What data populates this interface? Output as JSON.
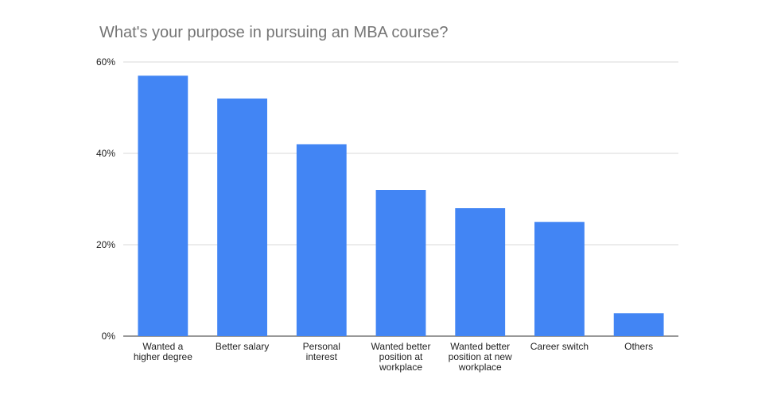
{
  "chart_data": {
    "type": "bar",
    "title": "What's your purpose in pursuing an MBA course?",
    "xlabel": "",
    "ylabel": "",
    "ylim": [
      0,
      60
    ],
    "yticks": [
      0,
      20,
      40,
      60
    ],
    "ytick_labels": [
      "0%",
      "20%",
      "40%",
      "60%"
    ],
    "grid": true,
    "legend": "none",
    "bar_color": "#4285f4",
    "categories": [
      [
        "Wanted a",
        "higher degree"
      ],
      [
        "Better salary"
      ],
      [
        "Personal",
        "interest"
      ],
      [
        "Wanted better",
        "position at",
        "workplace"
      ],
      [
        "Wanted better",
        "position at new",
        "workplace"
      ],
      [
        "Career switch"
      ],
      [
        "Others"
      ]
    ],
    "values": [
      57,
      52,
      42,
      32,
      28,
      25,
      5
    ]
  }
}
